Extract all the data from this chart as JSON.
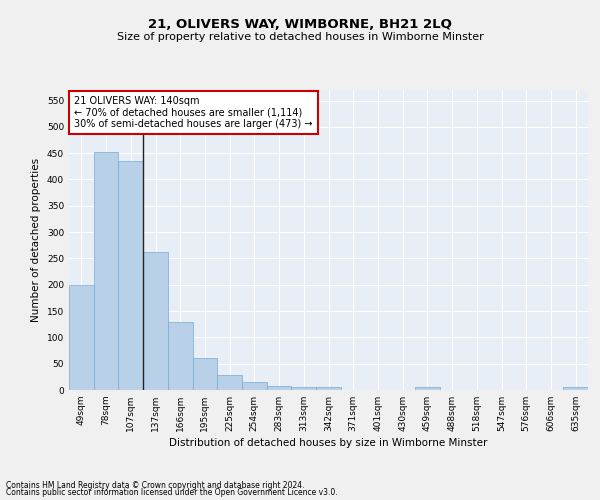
{
  "title": "21, OLIVERS WAY, WIMBORNE, BH21 2LQ",
  "subtitle": "Size of property relative to detached houses in Wimborne Minster",
  "xlabel": "Distribution of detached houses by size in Wimborne Minster",
  "ylabel": "Number of detached properties",
  "categories": [
    "49sqm",
    "78sqm",
    "107sqm",
    "137sqm",
    "166sqm",
    "195sqm",
    "225sqm",
    "254sqm",
    "283sqm",
    "313sqm",
    "342sqm",
    "371sqm",
    "401sqm",
    "430sqm",
    "459sqm",
    "488sqm",
    "518sqm",
    "547sqm",
    "576sqm",
    "606sqm",
    "635sqm"
  ],
  "values": [
    200,
    453,
    435,
    263,
    130,
    60,
    28,
    15,
    8,
    5,
    6,
    0,
    0,
    0,
    5,
    0,
    0,
    0,
    0,
    0,
    5
  ],
  "bar_color": "#b8d0e8",
  "bar_edge_color": "#7aaad0",
  "bar_linewidth": 0.5,
  "annotation_box_color": "#ffffff",
  "annotation_border_color": "#cc0000",
  "annotation_line1": "21 OLIVERS WAY: 140sqm",
  "annotation_line2": "← 70% of detached houses are smaller (1,114)",
  "annotation_line3": "30% of semi-detached houses are larger (473) →",
  "property_line_x": 2.5,
  "ylim": [
    0,
    570
  ],
  "yticks": [
    0,
    50,
    100,
    150,
    200,
    250,
    300,
    350,
    400,
    450,
    500,
    550
  ],
  "bg_color": "#e8eef5",
  "fig_bg_color": "#f0f0f0",
  "footer_line1": "Contains HM Land Registry data © Crown copyright and database right 2024.",
  "footer_line2": "Contains public sector information licensed under the Open Government Licence v3.0.",
  "grid_color": "#ffffff",
  "title_fontsize": 9.5,
  "subtitle_fontsize": 8.0,
  "axis_label_fontsize": 7.5,
  "tick_fontsize": 6.5,
  "annotation_fontsize": 7.0,
  "footer_fontsize": 5.5
}
